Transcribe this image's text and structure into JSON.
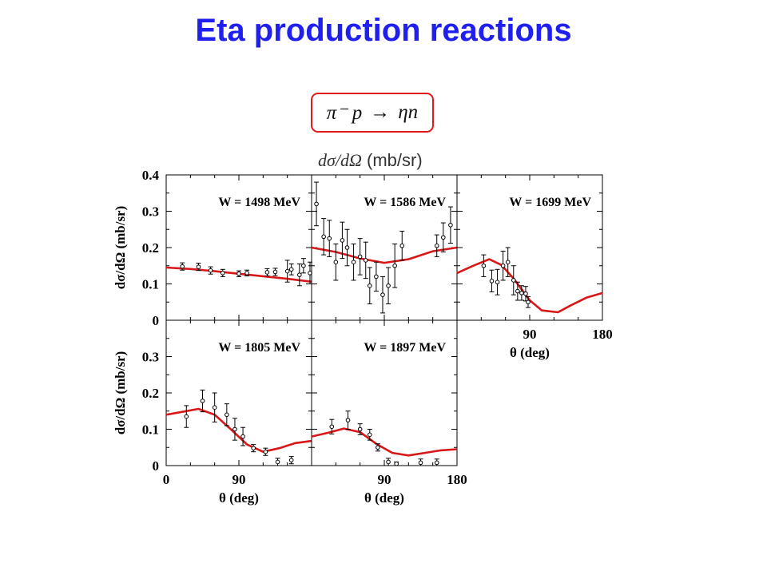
{
  "title": "Eta production reactions",
  "reaction": {
    "lhs": "π⁻ p",
    "arrow": "→",
    "rhs": "ηn"
  },
  "figure_header": {
    "math": "dσ/dΩ",
    "units": "(mb/sr)"
  },
  "colors": {
    "title": "#1f1ff0",
    "box_border": "#e01818",
    "curve": "#d81818",
    "data": "#000000"
  },
  "chart_data": [
    {
      "type": "scatter",
      "label": "W = 1498 MeV",
      "ylabel": "dσ/dΩ (mb/sr)",
      "xlabel": "",
      "xlim": [
        0,
        180
      ],
      "ylim": [
        0,
        0.4
      ],
      "yticks": [
        "0",
        "0.1",
        "0.2",
        "0.3",
        "0.4"
      ],
      "xticks": [],
      "points": [
        [
          20,
          0.148,
          0.01
        ],
        [
          40,
          0.147,
          0.01
        ],
        [
          55,
          0.137,
          0.01
        ],
        [
          70,
          0.13,
          0.01
        ],
        [
          90,
          0.128,
          0.008
        ],
        [
          100,
          0.13,
          0.008
        ],
        [
          125,
          0.132,
          0.01
        ],
        [
          135,
          0.133,
          0.01
        ],
        [
          150,
          0.135,
          0.03
        ],
        [
          155,
          0.14,
          0.015
        ],
        [
          165,
          0.125,
          0.03
        ],
        [
          170,
          0.15,
          0.02
        ],
        [
          178,
          0.13,
          0.03
        ]
      ],
      "model": {
        "x": [
          0,
          30,
          60,
          90,
          120,
          150,
          180
        ],
        "y": [
          0.145,
          0.141,
          0.135,
          0.128,
          0.121,
          0.114,
          0.106
        ]
      }
    },
    {
      "type": "scatter",
      "label": "W = 1586 MeV",
      "ylabel": "",
      "xlabel": "",
      "xlim": [
        0,
        180
      ],
      "ylim": [
        0,
        0.4
      ],
      "yticks": [],
      "xticks": [],
      "points": [
        [
          6,
          0.32,
          0.06
        ],
        [
          15,
          0.23,
          0.05
        ],
        [
          22,
          0.225,
          0.05
        ],
        [
          30,
          0.16,
          0.05
        ],
        [
          38,
          0.22,
          0.05
        ],
        [
          44,
          0.2,
          0.05
        ],
        [
          52,
          0.16,
          0.05
        ],
        [
          60,
          0.175,
          0.05
        ],
        [
          67,
          0.165,
          0.05
        ],
        [
          72,
          0.095,
          0.05
        ],
        [
          80,
          0.12,
          0.04
        ],
        [
          88,
          0.07,
          0.05
        ],
        [
          95,
          0.095,
          0.05
        ],
        [
          103,
          0.15,
          0.06
        ],
        [
          112,
          0.205,
          0.04
        ],
        [
          155,
          0.205,
          0.03
        ],
        [
          163,
          0.228,
          0.04
        ],
        [
          172,
          0.262,
          0.05
        ]
      ],
      "model": {
        "x": [
          0,
          30,
          60,
          90,
          120,
          150,
          180
        ],
        "y": [
          0.2,
          0.188,
          0.17,
          0.158,
          0.168,
          0.19,
          0.2
        ]
      }
    },
    {
      "type": "scatter",
      "label": "W = 1699 MeV",
      "ylabel": "",
      "xlabel": "θ (deg)",
      "xlim": [
        0,
        180
      ],
      "ylim": [
        0,
        0.4
      ],
      "yticks": [],
      "xticks": [
        "90",
        "180"
      ],
      "points": [
        [
          33,
          0.15,
          0.03
        ],
        [
          43,
          0.108,
          0.03
        ],
        [
          50,
          0.105,
          0.035
        ],
        [
          57,
          0.15,
          0.04
        ],
        [
          63,
          0.16,
          0.04
        ],
        [
          70,
          0.11,
          0.04
        ],
        [
          75,
          0.08,
          0.025
        ],
        [
          80,
          0.075,
          0.02
        ],
        [
          85,
          0.073,
          0.02
        ],
        [
          88,
          0.05,
          0.015
        ]
      ],
      "model": {
        "x": [
          0,
          20,
          40,
          55,
          70,
          80,
          90,
          105,
          125,
          140,
          160,
          180
        ],
        "y": [
          0.13,
          0.15,
          0.168,
          0.152,
          0.115,
          0.085,
          0.055,
          0.027,
          0.022,
          0.04,
          0.062,
          0.075
        ]
      }
    },
    {
      "type": "scatter",
      "label": "W = 1805 MeV",
      "ylabel": "dσ/dΩ (mb/sr)",
      "xlabel": "θ (deg)",
      "xlim": [
        0,
        180
      ],
      "ylim": [
        0,
        0.4
      ],
      "yticks": [
        "0",
        "0.1",
        "0.2",
        "0.3"
      ],
      "xticks": [
        "0",
        "90"
      ],
      "points": [
        [
          25,
          0.135,
          0.03
        ],
        [
          45,
          0.178,
          0.03
        ],
        [
          60,
          0.16,
          0.04
        ],
        [
          75,
          0.14,
          0.03
        ],
        [
          85,
          0.1,
          0.03
        ],
        [
          95,
          0.08,
          0.025
        ],
        [
          108,
          0.048,
          0.01
        ],
        [
          123,
          0.038,
          0.01
        ],
        [
          138,
          0.01,
          0.01
        ],
        [
          155,
          0.015,
          0.01
        ]
      ],
      "model": {
        "x": [
          0,
          20,
          40,
          60,
          80,
          100,
          120,
          140,
          160,
          180
        ],
        "y": [
          0.14,
          0.148,
          0.156,
          0.14,
          0.1,
          0.058,
          0.038,
          0.048,
          0.062,
          0.068
        ]
      }
    },
    {
      "type": "scatter",
      "label": "W = 1897 MeV",
      "ylabel": "",
      "xlabel": "θ (deg)",
      "xlim": [
        0,
        180
      ],
      "ylim": [
        0,
        0.4
      ],
      "yticks": [],
      "xticks": [
        "90",
        "180"
      ],
      "points": [
        [
          25,
          0.107,
          0.02
        ],
        [
          45,
          0.125,
          0.025
        ],
        [
          60,
          0.1,
          0.015
        ],
        [
          72,
          0.085,
          0.015
        ],
        [
          82,
          0.05,
          0.01
        ],
        [
          95,
          0.01,
          0.01
        ],
        [
          105,
          0.005,
          0.005
        ],
        [
          135,
          0.008,
          0.01
        ],
        [
          155,
          0.008,
          0.01
        ]
      ],
      "model": {
        "x": [
          0,
          20,
          40,
          60,
          80,
          100,
          120,
          140,
          160,
          180
        ],
        "y": [
          0.08,
          0.09,
          0.102,
          0.092,
          0.06,
          0.035,
          0.028,
          0.035,
          0.042,
          0.045
        ]
      }
    }
  ]
}
